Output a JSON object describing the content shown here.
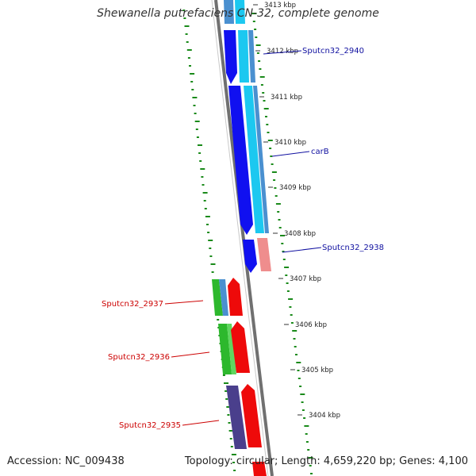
{
  "title": "Shewanella putrefaciens CN-32, complete genome",
  "accession": "Accession: NC_009438",
  "topology_line": "Topology: circular; Length: 4,659,220 bp; Genes: 4,100",
  "ruler": {
    "ticks": [
      "3413 kbp",
      "3412 kbp",
      "3411 kbp",
      "3410 kbp",
      "3409 kbp",
      "3408 kbp",
      "3407 kbp",
      "3406 kbp",
      "3405 kbp",
      "3404 kbp"
    ]
  },
  "colors": {
    "cds_forward": "#1010f0",
    "cds_forward_light": "#1cc8f0",
    "cds_mid_blue": "#4a90d0",
    "cds_reverse": "#ee0a0a",
    "cds_reverse_light": "#ef8d8d",
    "green_feature": "#2db82d",
    "purple_feature": "#4a3f8c",
    "backbone": "#7a7a7a",
    "gc_dots": "#1a8a1a",
    "label_forward": "#1010a0",
    "label_reverse": "#cc0000"
  },
  "genes": [
    {
      "label": "Sputcn32_2940",
      "strand": "forward"
    },
    {
      "label": "carB",
      "strand": "forward"
    },
    {
      "label": "Sputcn32_2938",
      "strand": "forward"
    },
    {
      "label": "Sputcn32_2937",
      "strand": "reverse"
    },
    {
      "label": "Sputcn32_2936",
      "strand": "reverse"
    },
    {
      "label": "Sputcn32_2935",
      "strand": "reverse"
    }
  ]
}
